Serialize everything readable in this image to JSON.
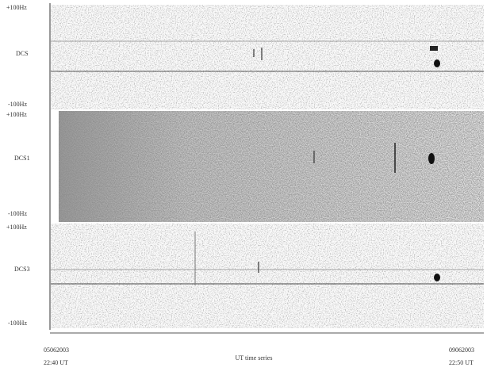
{
  "panels": [
    {
      "top_label": "+100Hz",
      "name": "DCS",
      "bottom_label": "-100Hz"
    },
    {
      "top_label": "+100Hz",
      "name": "DCS1",
      "bottom_label": "-100Hz"
    },
    {
      "top_label": "+100Hz",
      "name": "DCS3",
      "bottom_label": "-100Hz"
    }
  ],
  "footer": {
    "start": {
      "date": "05062003",
      "time": "22:40 UT"
    },
    "axis_label": "UT time series",
    "end": {
      "date": "09062003",
      "time": "22:50 UT"
    }
  }
}
